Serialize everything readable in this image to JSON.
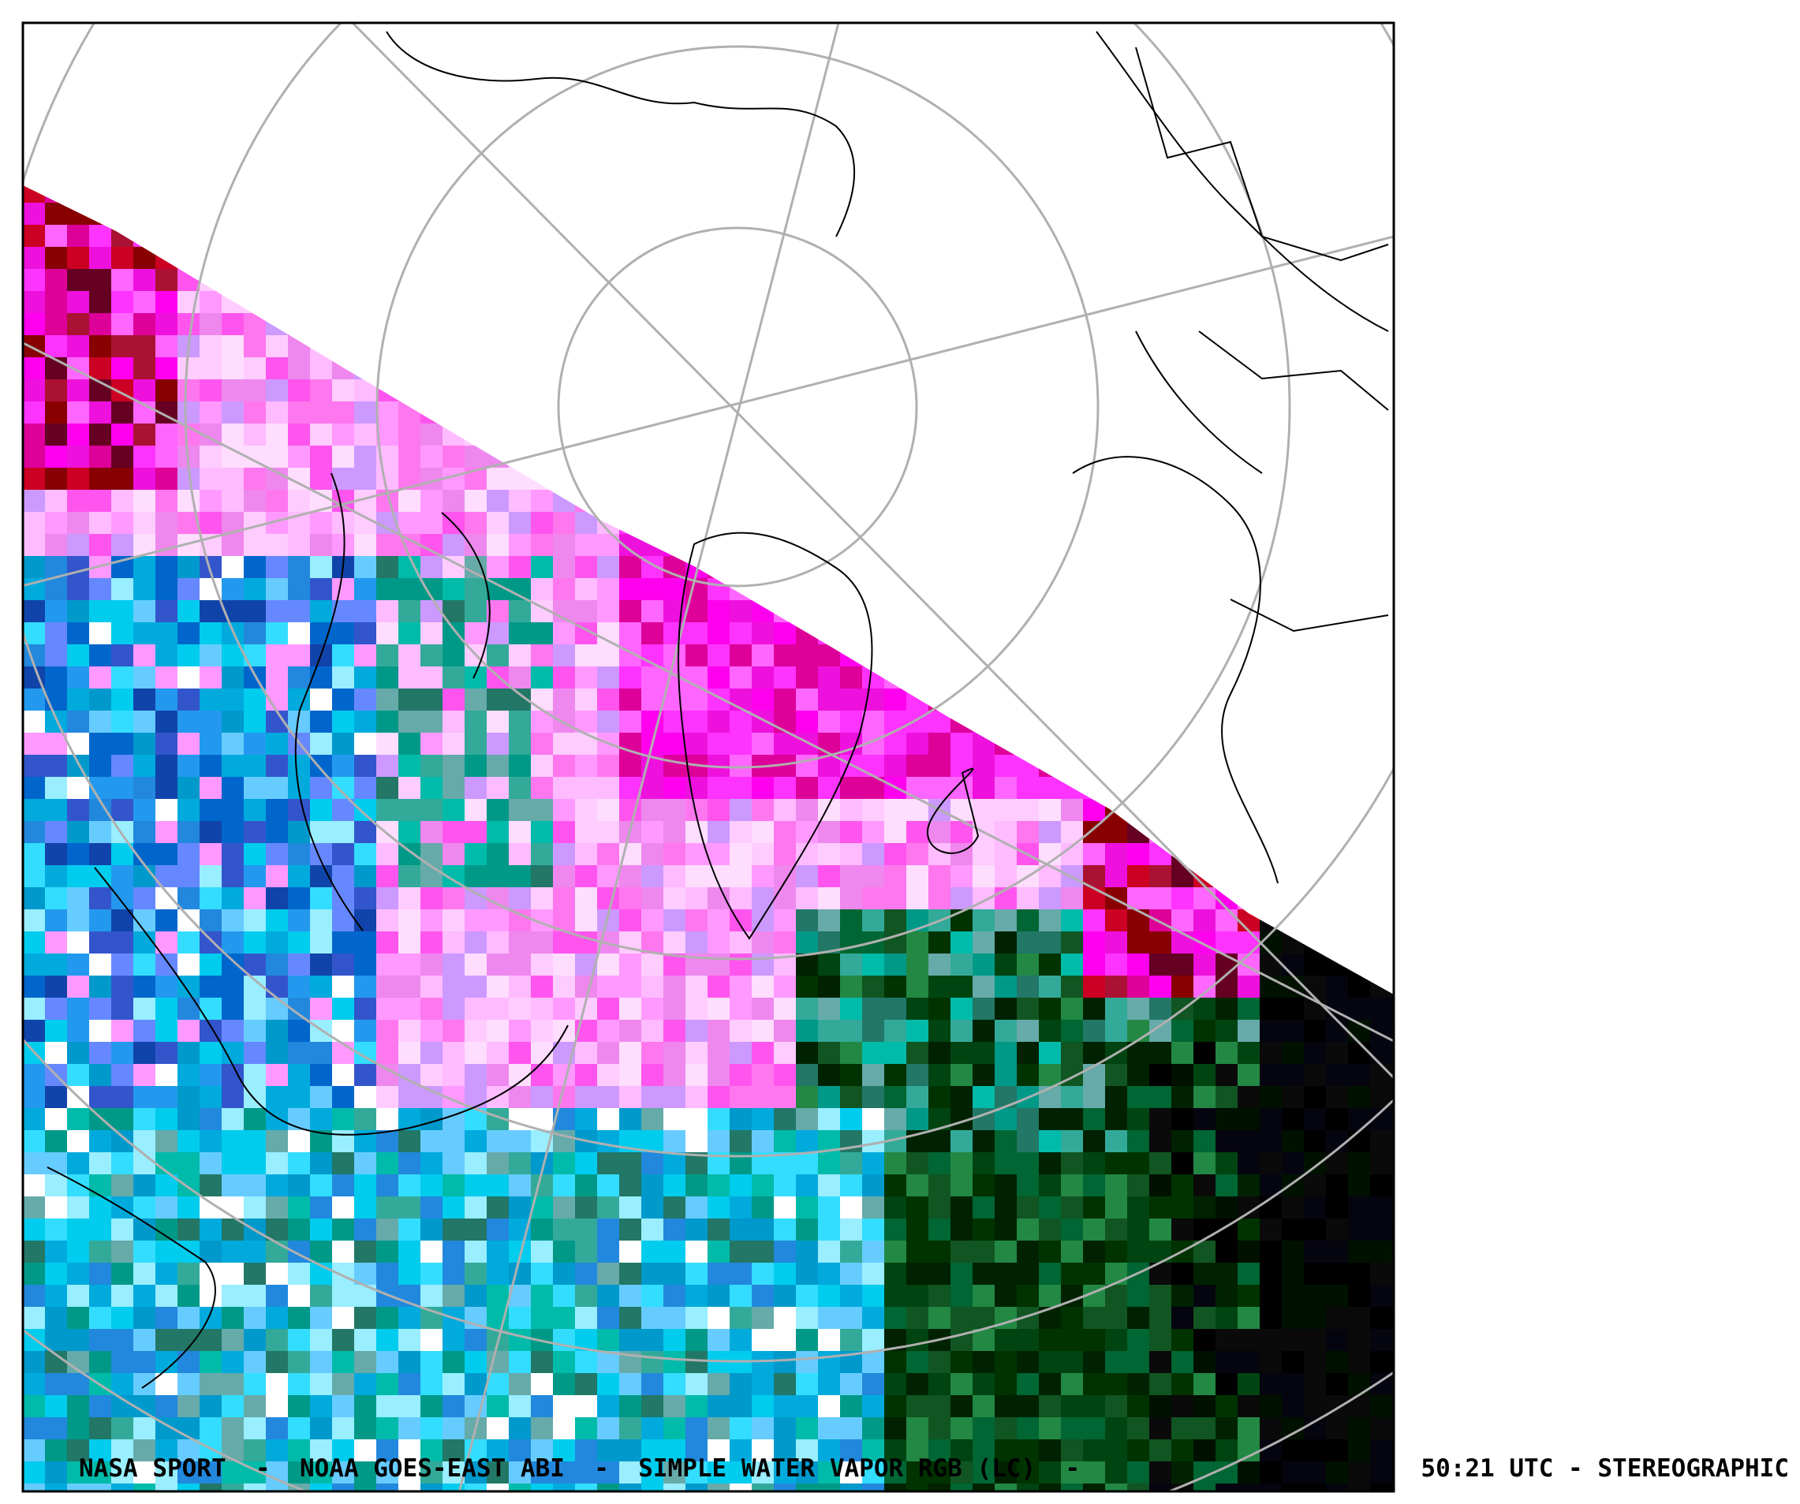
{
  "caption": {
    "left": "NASA SPORT  -  NOAA GOES-EAST ABI  -  SIMPLE WATER VAPOR RGB (LC)  -",
    "right": "50:21 UTC - STEREOGRAPHIC"
  }
}
